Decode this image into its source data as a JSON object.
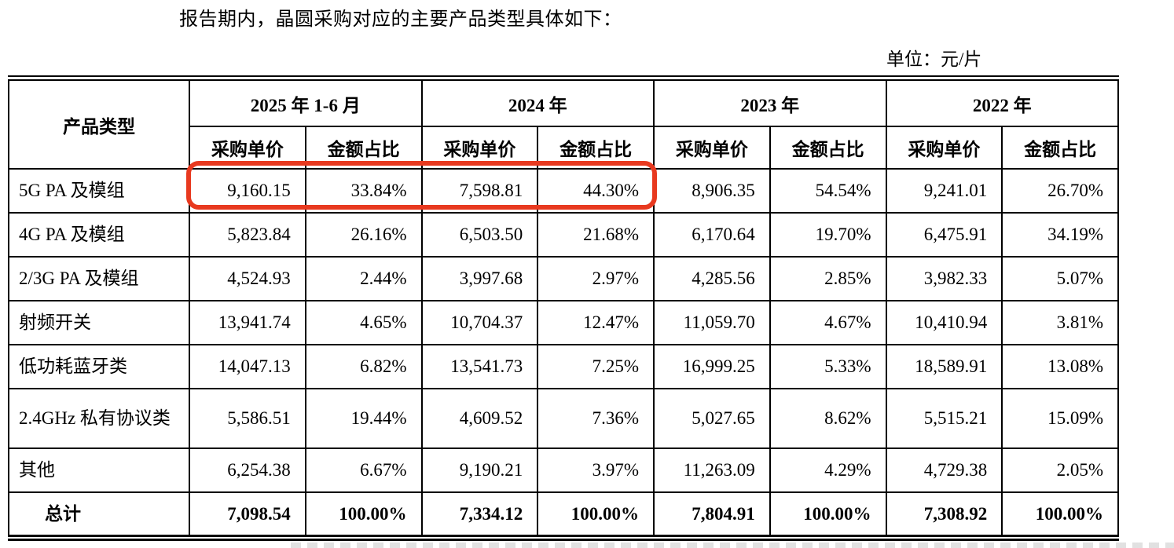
{
  "intro": "报告期内，晶圆采购对应的主要产品类型具体如下：",
  "unit_label": "单位：元/片",
  "table": {
    "corner_header": "产品类型",
    "period_headers": [
      "2025 年 1-6 月",
      "2024 年",
      "2023 年",
      "2022 年"
    ],
    "sub_headers": [
      "采购单价",
      "金额占比"
    ],
    "rows": [
      {
        "label": "5G PA 及模组",
        "values": [
          "9,160.15",
          "33.84%",
          "7,598.81",
          "44.30%",
          "8,906.35",
          "54.54%",
          "9,241.01",
          "26.70%"
        ]
      },
      {
        "label": "4G PA 及模组",
        "values": [
          "5,823.84",
          "26.16%",
          "6,503.50",
          "21.68%",
          "6,170.64",
          "19.70%",
          "6,475.91",
          "34.19%"
        ]
      },
      {
        "label": "2/3G PA 及模组",
        "values": [
          "4,524.93",
          "2.44%",
          "3,997.68",
          "2.97%",
          "4,285.56",
          "2.85%",
          "3,982.33",
          "5.07%"
        ]
      },
      {
        "label": "射频开关",
        "values": [
          "13,941.74",
          "4.65%",
          "10,704.37",
          "12.47%",
          "11,059.70",
          "4.67%",
          "10,410.94",
          "3.81%"
        ]
      },
      {
        "label": "低功耗蓝牙类",
        "values": [
          "14,047.13",
          "6.82%",
          "13,541.73",
          "7.25%",
          "16,999.25",
          "5.33%",
          "18,589.91",
          "13.08%"
        ]
      },
      {
        "label": "2.4GHz 私有协议类",
        "values": [
          "5,586.51",
          "19.44%",
          "4,609.52",
          "7.36%",
          "5,027.65",
          "8.62%",
          "5,515.21",
          "15.09%"
        ]
      },
      {
        "label": "其他",
        "values": [
          "6,254.38",
          "6.67%",
          "9,190.21",
          "3.97%",
          "11,263.09",
          "4.29%",
          "4,729.38",
          "2.05%"
        ]
      }
    ],
    "total_row": {
      "label": "总计",
      "values": [
        "7,098.54",
        "100.00%",
        "7,334.12",
        "100.00%",
        "7,804.91",
        "100.00%",
        "7,308.92",
        "100.00%"
      ]
    }
  },
  "annotation": {
    "shape": "rounded-rectangle",
    "color": "#e8391f",
    "highlights": "5G PA 及模组：2025 年 1-6 月与 2024 年的采购单价、金额占比"
  }
}
